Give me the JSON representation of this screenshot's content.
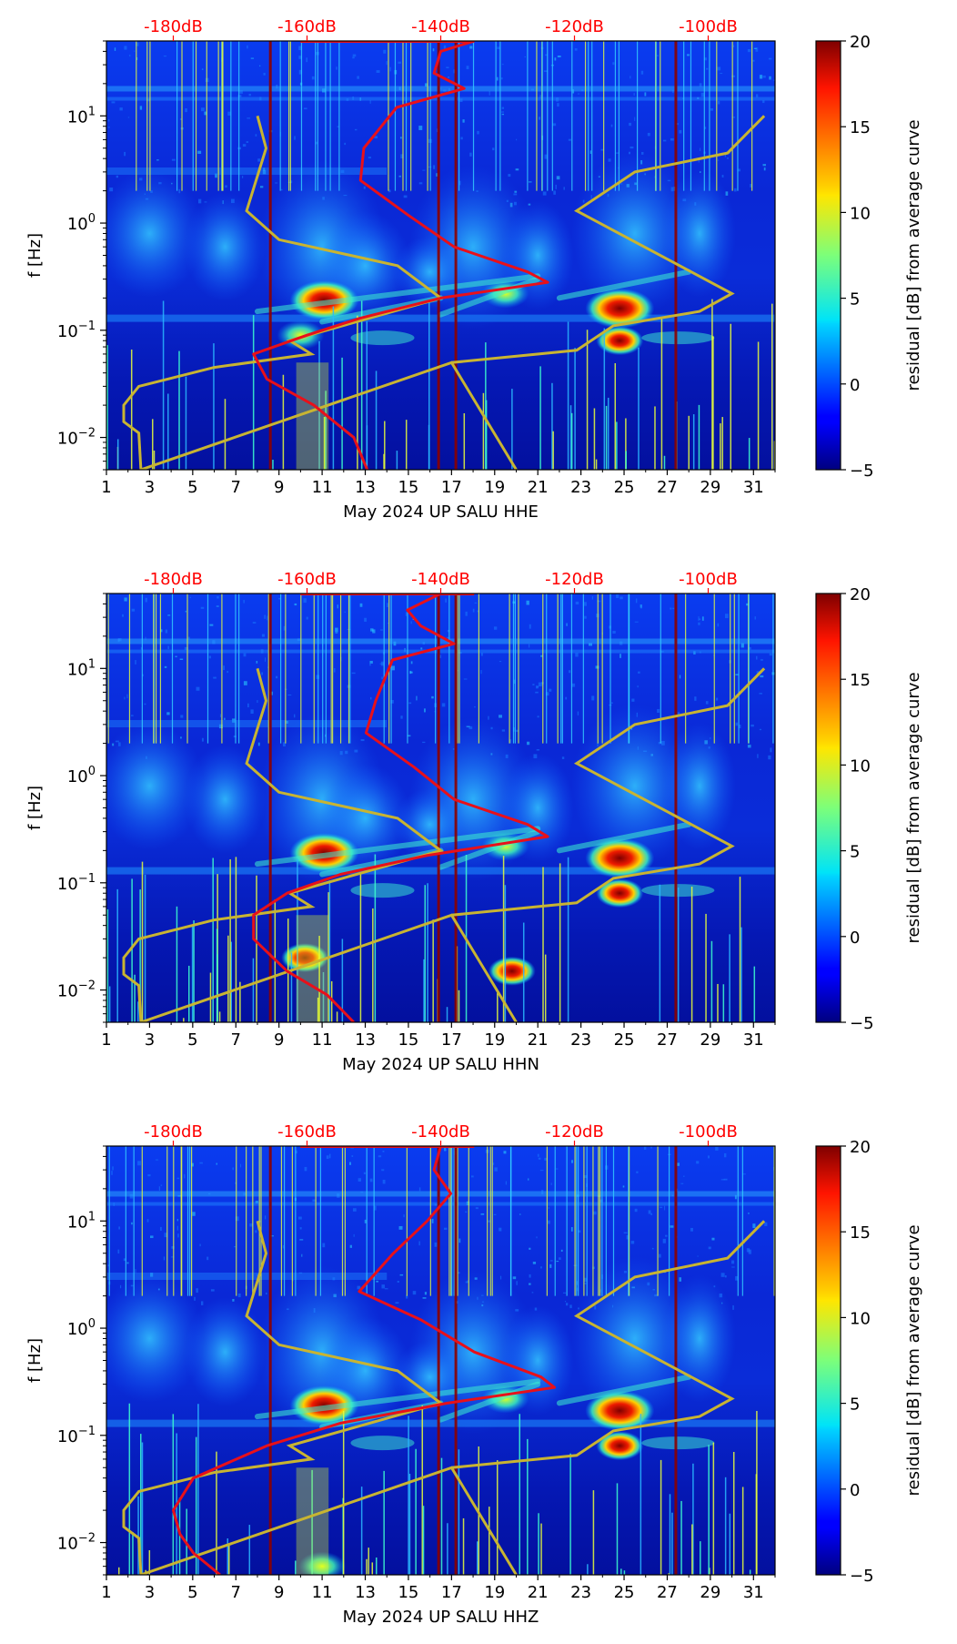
{
  "chart_data": [
    {
      "type": "heatmap",
      "station": "UP SALU",
      "channel": "HHE",
      "xlabel": "May 2024 UP SALU  HHE",
      "ylabel": "f [Hz]",
      "colorbar_label": "residual [dB] from average curve",
      "x_ticks": [
        "1",
        "3",
        "5",
        "7",
        "9",
        "11",
        "13",
        "15",
        "17",
        "19",
        "21",
        "23",
        "25",
        "27",
        "29",
        "31"
      ],
      "xlim": [
        1,
        32
      ],
      "ylim": [
        0.005,
        50
      ],
      "y_ticks": [
        {
          "value": 0.01,
          "base": "10",
          "exp": "−2"
        },
        {
          "value": 0.1,
          "base": "10",
          "exp": "−1"
        },
        {
          "value": 1,
          "base": "10",
          "exp": "0"
        },
        {
          "value": 10,
          "base": "10",
          "exp": "1"
        }
      ],
      "colorbar_ticks": [
        "−5",
        "0",
        "5",
        "10",
        "15",
        "20"
      ],
      "colorbar_range": [
        -5,
        20
      ],
      "db_labels": [
        "-180dB",
        "-160dB",
        "-140dB",
        "-120dB",
        "-100dB"
      ],
      "db_range": [
        -190,
        -90
      ],
      "red_curve": [
        {
          "f": 50,
          "db": -135
        },
        {
          "f": 40,
          "db": -140
        },
        {
          "f": 25,
          "db": -141
        },
        {
          "f": 18,
          "db": -136
        },
        {
          "f": 12,
          "db": -147
        },
        {
          "f": 5,
          "db": -151
        },
        {
          "f": 2.5,
          "db": -152
        },
        {
          "f": 1.2,
          "db": -145
        },
        {
          "f": 0.6,
          "db": -138
        },
        {
          "f": 0.35,
          "db": -127
        },
        {
          "f": 0.28,
          "db": -124
        },
        {
          "f": 0.2,
          "db": -140
        },
        {
          "f": 0.13,
          "db": -152
        },
        {
          "f": 0.09,
          "db": -160
        },
        {
          "f": 0.06,
          "db": -168
        },
        {
          "f": 0.035,
          "db": -166
        },
        {
          "f": 0.02,
          "db": -159
        },
        {
          "f": 0.01,
          "db": -153
        },
        {
          "f": 0.005,
          "db": -151
        }
      ],
      "yellow_curve": [
        {
          "day": 8.0,
          "f": 10
        },
        {
          "day": 8.4,
          "f": 5
        },
        {
          "day": 7.5,
          "f": 1.3
        },
        {
          "day": 9.0,
          "f": 0.7
        },
        {
          "day": 14.5,
          "f": 0.4
        },
        {
          "day": 16.5,
          "f": 0.2
        },
        {
          "day": 9.5,
          "f": 0.08
        },
        {
          "day": 10.5,
          "f": 0.06
        },
        {
          "day": 6.0,
          "f": 0.045
        },
        {
          "day": 2.5,
          "f": 0.03
        },
        {
          "day": 1.8,
          "f": 0.02
        },
        {
          "day": 1.8,
          "f": 0.014
        },
        {
          "day": 2.5,
          "f": 0.011
        },
        {
          "day": 2.6,
          "f": 0.005
        },
        {
          "day": 17.0,
          "f": 0.05
        },
        {
          "day": 20.0,
          "f": 0.005
        }
      ],
      "yellow_curve_right": [
        {
          "day": 31.5,
          "f": 10
        },
        {
          "day": 29.8,
          "f": 4.5
        },
        {
          "day": 25.5,
          "f": 3
        },
        {
          "day": 22.8,
          "f": 1.3
        },
        {
          "day": 30.0,
          "f": 0.22
        },
        {
          "day": 28.5,
          "f": 0.15
        },
        {
          "day": 24.5,
          "f": 0.11
        },
        {
          "day": 22.8,
          "f": 0.065
        },
        {
          "day": 17.0,
          "f": 0.05
        }
      ],
      "hot_spots": [
        {
          "day": 11.1,
          "f": 0.19,
          "level": 20
        },
        {
          "day": 24.8,
          "f": 0.16,
          "level": 19
        },
        {
          "day": 24.8,
          "f": 0.08,
          "level": 15
        },
        {
          "day": 19.5,
          "f": 0.22,
          "level": 8
        },
        {
          "day": 10.0,
          "f": 0.09,
          "level": 8
        }
      ],
      "vertical_red_lines": [
        8.6,
        16.4,
        17.2,
        27.4
      ]
    },
    {
      "type": "heatmap",
      "station": "UP SALU",
      "channel": "HHN",
      "xlabel": "May 2024 UP SALU  HHN",
      "ylabel": "f [Hz]",
      "colorbar_label": "residual [dB] from average curve",
      "x_ticks": [
        "1",
        "3",
        "5",
        "7",
        "9",
        "11",
        "13",
        "15",
        "17",
        "19",
        "21",
        "23",
        "25",
        "27",
        "29",
        "31"
      ],
      "xlim": [
        1,
        32
      ],
      "ylim": [
        0.005,
        50
      ],
      "y_ticks": [
        {
          "value": 0.01,
          "base": "10",
          "exp": "−2"
        },
        {
          "value": 0.1,
          "base": "10",
          "exp": "−1"
        },
        {
          "value": 1,
          "base": "10",
          "exp": "0"
        },
        {
          "value": 10,
          "base": "10",
          "exp": "1"
        }
      ],
      "colorbar_ticks": [
        "−5",
        "0",
        "5",
        "10",
        "15",
        "20"
      ],
      "colorbar_range": [
        -5,
        20
      ],
      "db_labels": [
        "-180dB",
        "-160dB",
        "-140dB",
        "-120dB",
        "-100dB"
      ],
      "db_range": [
        -190,
        -90
      ],
      "red_curve": [
        {
          "f": 50,
          "db": -140
        },
        {
          "f": 35,
          "db": -145
        },
        {
          "f": 25,
          "db": -143
        },
        {
          "f": 17,
          "db": -138
        },
        {
          "f": 12,
          "db": -147
        },
        {
          "f": 5,
          "db": -150
        },
        {
          "f": 2.5,
          "db": -151
        },
        {
          "f": 1.2,
          "db": -144
        },
        {
          "f": 0.6,
          "db": -138
        },
        {
          "f": 0.35,
          "db": -127
        },
        {
          "f": 0.27,
          "db": -124
        },
        {
          "f": 0.18,
          "db": -142
        },
        {
          "f": 0.12,
          "db": -155
        },
        {
          "f": 0.08,
          "db": -163
        },
        {
          "f": 0.05,
          "db": -168
        },
        {
          "f": 0.03,
          "db": -168
        },
        {
          "f": 0.015,
          "db": -163
        },
        {
          "f": 0.009,
          "db": -157
        },
        {
          "f": 0.005,
          "db": -153
        }
      ],
      "yellow_curve": [
        {
          "day": 8.0,
          "f": 10
        },
        {
          "day": 8.4,
          "f": 5
        },
        {
          "day": 7.5,
          "f": 1.3
        },
        {
          "day": 9.0,
          "f": 0.7
        },
        {
          "day": 14.5,
          "f": 0.4
        },
        {
          "day": 16.5,
          "f": 0.2
        },
        {
          "day": 9.5,
          "f": 0.08
        },
        {
          "day": 10.5,
          "f": 0.06
        },
        {
          "day": 6.0,
          "f": 0.045
        },
        {
          "day": 2.5,
          "f": 0.03
        },
        {
          "day": 1.8,
          "f": 0.02
        },
        {
          "day": 1.8,
          "f": 0.014
        },
        {
          "day": 2.5,
          "f": 0.011
        },
        {
          "day": 2.6,
          "f": 0.005
        },
        {
          "day": 17.0,
          "f": 0.05
        },
        {
          "day": 20.0,
          "f": 0.005
        }
      ],
      "yellow_curve_right": [
        {
          "day": 31.5,
          "f": 10
        },
        {
          "day": 29.8,
          "f": 4.5
        },
        {
          "day": 25.5,
          "f": 3
        },
        {
          "day": 22.8,
          "f": 1.3
        },
        {
          "day": 30.0,
          "f": 0.22
        },
        {
          "day": 28.5,
          "f": 0.15
        },
        {
          "day": 24.5,
          "f": 0.11
        },
        {
          "day": 22.8,
          "f": 0.065
        },
        {
          "day": 17.0,
          "f": 0.05
        }
      ],
      "hot_spots": [
        {
          "day": 11.1,
          "f": 0.19,
          "level": 20
        },
        {
          "day": 24.8,
          "f": 0.17,
          "level": 20
        },
        {
          "day": 24.8,
          "f": 0.08,
          "level": 14
        },
        {
          "day": 19.5,
          "f": 0.22,
          "level": 8
        },
        {
          "day": 10.2,
          "f": 0.02,
          "level": 16
        },
        {
          "day": 19.8,
          "f": 0.015,
          "level": 14
        }
      ],
      "vertical_red_lines": [
        8.6,
        16.4,
        17.2,
        27.4
      ]
    },
    {
      "type": "heatmap",
      "station": "UP SALU",
      "channel": "HHZ",
      "xlabel": "May 2024 UP SALU  HHZ",
      "ylabel": "f [Hz]",
      "colorbar_label": "residual [dB] from average curve",
      "x_ticks": [
        "1",
        "3",
        "5",
        "7",
        "9",
        "11",
        "13",
        "15",
        "17",
        "19",
        "21",
        "23",
        "25",
        "27",
        "29",
        "31"
      ],
      "xlim": [
        1,
        32
      ],
      "ylim": [
        0.005,
        50
      ],
      "y_ticks": [
        {
          "value": 0.01,
          "base": "10",
          "exp": "−2"
        },
        {
          "value": 0.1,
          "base": "10",
          "exp": "−1"
        },
        {
          "value": 1,
          "base": "10",
          "exp": "0"
        },
        {
          "value": 10,
          "base": "10",
          "exp": "1"
        }
      ],
      "colorbar_ticks": [
        "−5",
        "0",
        "5",
        "10",
        "15",
        "20"
      ],
      "colorbar_range": [
        -5,
        20
      ],
      "db_labels": [
        "-180dB",
        "-160dB",
        "-140dB",
        "-120dB",
        "-100dB"
      ],
      "db_range": [
        -190,
        -90
      ],
      "red_curve": [
        {
          "f": 50,
          "db": -140
        },
        {
          "f": 30,
          "db": -141
        },
        {
          "f": 18,
          "db": -138
        },
        {
          "f": 10,
          "db": -142
        },
        {
          "f": 5,
          "db": -147
        },
        {
          "f": 2.2,
          "db": -152
        },
        {
          "f": 1.2,
          "db": -143
        },
        {
          "f": 0.6,
          "db": -135
        },
        {
          "f": 0.35,
          "db": -125
        },
        {
          "f": 0.28,
          "db": -123
        },
        {
          "f": 0.2,
          "db": -139
        },
        {
          "f": 0.13,
          "db": -155
        },
        {
          "f": 0.08,
          "db": -166
        },
        {
          "f": 0.04,
          "db": -177
        },
        {
          "f": 0.02,
          "db": -180
        },
        {
          "f": 0.012,
          "db": -179
        },
        {
          "f": 0.008,
          "db": -177
        },
        {
          "f": 0.005,
          "db": -173
        }
      ],
      "yellow_curve": [
        {
          "day": 8.0,
          "f": 10
        },
        {
          "day": 8.4,
          "f": 5
        },
        {
          "day": 7.5,
          "f": 1.3
        },
        {
          "day": 9.0,
          "f": 0.7
        },
        {
          "day": 14.5,
          "f": 0.4
        },
        {
          "day": 16.5,
          "f": 0.2
        },
        {
          "day": 9.5,
          "f": 0.08
        },
        {
          "day": 10.5,
          "f": 0.06
        },
        {
          "day": 6.0,
          "f": 0.045
        },
        {
          "day": 2.5,
          "f": 0.03
        },
        {
          "day": 1.8,
          "f": 0.02
        },
        {
          "day": 1.8,
          "f": 0.014
        },
        {
          "day": 2.5,
          "f": 0.011
        },
        {
          "day": 2.6,
          "f": 0.005
        },
        {
          "day": 17.0,
          "f": 0.05
        },
        {
          "day": 20.0,
          "f": 0.005
        }
      ],
      "yellow_curve_right": [
        {
          "day": 31.5,
          "f": 10
        },
        {
          "day": 29.8,
          "f": 4.5
        },
        {
          "day": 25.5,
          "f": 3
        },
        {
          "day": 22.8,
          "f": 1.3
        },
        {
          "day": 30.0,
          "f": 0.22
        },
        {
          "day": 28.5,
          "f": 0.15
        },
        {
          "day": 24.5,
          "f": 0.11
        },
        {
          "day": 22.8,
          "f": 0.065
        },
        {
          "day": 17.0,
          "f": 0.05
        }
      ],
      "hot_spots": [
        {
          "day": 11.1,
          "f": 0.19,
          "level": 20
        },
        {
          "day": 24.8,
          "f": 0.17,
          "level": 20
        },
        {
          "day": 24.8,
          "f": 0.08,
          "level": 14
        },
        {
          "day": 19.5,
          "f": 0.22,
          "level": 9
        },
        {
          "day": 11.0,
          "f": 0.006,
          "level": 9
        }
      ],
      "vertical_red_lines": [
        8.6,
        16.4,
        17.2,
        27.4
      ]
    }
  ],
  "colors": {
    "red_curve": "#e8101a",
    "yellow_curve": "#c8b432",
    "db_label": "#ff0000",
    "vertical_line": "#8b0000"
  }
}
